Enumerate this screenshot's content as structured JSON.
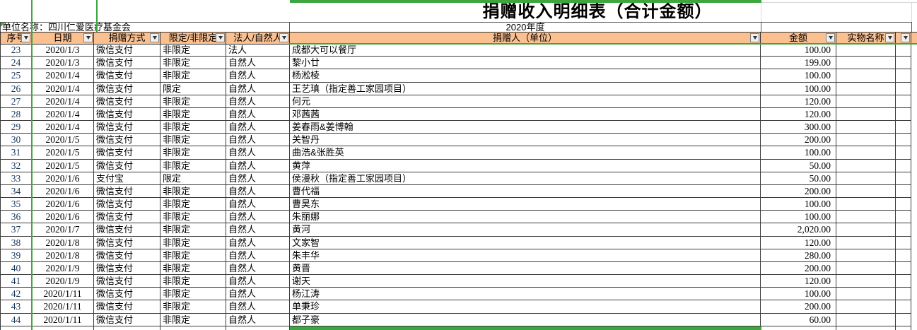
{
  "title": "捐赠收入明细表（合计金额）",
  "unit_label": "单位名称：四川仁爱医疗基金会",
  "year_label": "2020年度",
  "colors": {
    "header_bg": "#FAC090",
    "selection_green": "#3DA63E",
    "row_number_text": "#16365C"
  },
  "icons": {
    "filter_dropdown": "down-triangle",
    "cell_comment_marker": "green-corner-triangle"
  },
  "columns": [
    {
      "key": "seq",
      "label": "序号"
    },
    {
      "key": "date",
      "label": "日期"
    },
    {
      "key": "method",
      "label": "捐赠方式"
    },
    {
      "key": "restriction",
      "label": "限定/非限定"
    },
    {
      "key": "entity",
      "label": "法人/自然人"
    },
    {
      "key": "donor",
      "label": "捐赠人（单位）"
    },
    {
      "key": "amount",
      "label": "金额"
    },
    {
      "key": "item",
      "label": "实物名称"
    },
    {
      "key": "extra",
      "label": ""
    }
  ],
  "rows": [
    {
      "seq": "23",
      "date": "2020/1/3",
      "method": "微信支付",
      "restriction": "非限定",
      "entity": "法人",
      "donor": "成都大可以餐厅",
      "amount": "100.00",
      "item": ""
    },
    {
      "seq": "24",
      "date": "2020/1/3",
      "method": "微信支付",
      "restriction": "非限定",
      "entity": "自然人",
      "donor": "黎小廿",
      "amount": "199.00",
      "item": ""
    },
    {
      "seq": "25",
      "date": "2020/1/4",
      "method": "微信支付",
      "restriction": "非限定",
      "entity": "自然人",
      "donor": "杨淞棱",
      "amount": "100.00",
      "item": ""
    },
    {
      "seq": "26",
      "date": "2020/1/4",
      "method": "微信支付",
      "restriction": "限定",
      "entity": "自然人",
      "donor": "王艺瑱（指定善工家园项目）",
      "amount": "100.00",
      "item": ""
    },
    {
      "seq": "27",
      "date": "2020/1/4",
      "method": "微信支付",
      "restriction": "非限定",
      "entity": "自然人",
      "donor": "何元",
      "amount": "120.00",
      "item": ""
    },
    {
      "seq": "28",
      "date": "2020/1/4",
      "method": "微信支付",
      "restriction": "非限定",
      "entity": "自然人",
      "donor": "邓茜茜",
      "amount": "120.00",
      "item": ""
    },
    {
      "seq": "29",
      "date": "2020/1/4",
      "method": "微信支付",
      "restriction": "非限定",
      "entity": "自然人",
      "donor": "姜春雨&姜博翰",
      "amount": "300.00",
      "item": ""
    },
    {
      "seq": "30",
      "date": "2020/1/5",
      "method": "微信支付",
      "restriction": "非限定",
      "entity": "自然人",
      "donor": "关智丹",
      "amount": "200.00",
      "item": ""
    },
    {
      "seq": "31",
      "date": "2020/1/5",
      "method": "微信支付",
      "restriction": "非限定",
      "entity": "自然人",
      "donor": "曲浩&张胜英",
      "amount": "100.00",
      "item": ""
    },
    {
      "seq": "32",
      "date": "2020/1/5",
      "method": "微信支付",
      "restriction": "非限定",
      "entity": "自然人",
      "donor": "黄萍",
      "amount": "50.00",
      "item": ""
    },
    {
      "seq": "33",
      "date": "2020/1/6",
      "method": "支付宝",
      "restriction": "限定",
      "entity": "自然人",
      "donor": "侯漫秋（指定善工家园项目）",
      "amount": "50.00",
      "item": ""
    },
    {
      "seq": "34",
      "date": "2020/1/6",
      "method": "微信支付",
      "restriction": "非限定",
      "entity": "自然人",
      "donor": "曹代福",
      "amount": "200.00",
      "item": ""
    },
    {
      "seq": "35",
      "date": "2020/1/6",
      "method": "微信支付",
      "restriction": "非限定",
      "entity": "自然人",
      "donor": "曹昊东",
      "amount": "100.00",
      "item": ""
    },
    {
      "seq": "36",
      "date": "2020/1/6",
      "method": "微信支付",
      "restriction": "非限定",
      "entity": "自然人",
      "donor": "朱丽娜",
      "amount": "100.00",
      "item": ""
    },
    {
      "seq": "37",
      "date": "2020/1/7",
      "method": "微信支付",
      "restriction": "非限定",
      "entity": "自然人",
      "donor": "黄河",
      "amount": "2,020.00",
      "item": ""
    },
    {
      "seq": "38",
      "date": "2020/1/8",
      "method": "微信支付",
      "restriction": "非限定",
      "entity": "自然人",
      "donor": "文家智",
      "amount": "120.00",
      "item": ""
    },
    {
      "seq": "39",
      "date": "2020/1/8",
      "method": "微信支付",
      "restriction": "非限定",
      "entity": "自然人",
      "donor": "朱丰华",
      "amount": "280.00",
      "item": ""
    },
    {
      "seq": "40",
      "date": "2020/1/9",
      "method": "微信支付",
      "restriction": "非限定",
      "entity": "自然人",
      "donor": "黄晋",
      "amount": "200.00",
      "item": ""
    },
    {
      "seq": "41",
      "date": "2020/1/9",
      "method": "微信支付",
      "restriction": "非限定",
      "entity": "自然人",
      "donor": "谢天",
      "amount": "120.00",
      "item": ""
    },
    {
      "seq": "42",
      "date": "2020/1/11",
      "method": "微信支付",
      "restriction": "非限定",
      "entity": "自然人",
      "donor": "杨江涛",
      "amount": "100.00",
      "item": ""
    },
    {
      "seq": "43",
      "date": "2020/1/11",
      "method": "微信支付",
      "restriction": "非限定",
      "entity": "自然人",
      "donor": "单秉珍",
      "amount": "200.00",
      "item": ""
    },
    {
      "seq": "44",
      "date": "2020/1/11",
      "method": "微信支付",
      "restriction": "非限定",
      "entity": "自然人",
      "donor": "都子豪",
      "amount": "60.00",
      "item": ""
    }
  ]
}
